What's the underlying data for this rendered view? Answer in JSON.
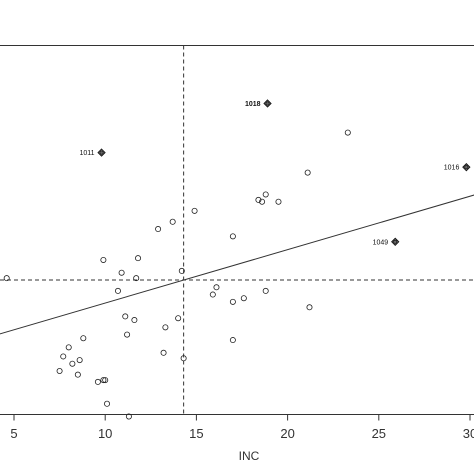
{
  "chart_data": {
    "type": "scatter",
    "xlabel": "INC",
    "ylabel": "",
    "xlim": [
      4.5,
      30
    ],
    "ylim": [
      -8.8,
      5.8
    ],
    "x_ticks": [
      5,
      10,
      15,
      20,
      25,
      30
    ],
    "x_tick_labels": [
      "5",
      "10",
      "15",
      "20",
      "25",
      "30"
    ],
    "mean_x": 14.3,
    "mean_y": 0,
    "top_rule_y": 5.0,
    "regression_line": {
      "intercept": -2.1,
      "slope": 0.1467
    },
    "colors": {
      "points": "#222222",
      "labeled": "#333333",
      "lines": "#333333"
    },
    "points": [
      {
        "x": 4.6,
        "y": 0.05
      },
      {
        "x": 7.5,
        "y": -2.5
      },
      {
        "x": 7.7,
        "y": -2.1
      },
      {
        "x": 8.0,
        "y": -1.85
      },
      {
        "x": 8.2,
        "y": -2.3
      },
      {
        "x": 8.5,
        "y": -2.6
      },
      {
        "x": 8.6,
        "y": -2.2
      },
      {
        "x": 8.8,
        "y": -1.6
      },
      {
        "x": 9.6,
        "y": -2.8
      },
      {
        "x": 9.9,
        "y": -2.75
      },
      {
        "x": 10.0,
        "y": -2.75
      },
      {
        "x": 10.1,
        "y": -3.4
      },
      {
        "x": 9.9,
        "y": 0.55
      },
      {
        "x": 10.7,
        "y": -0.3
      },
      {
        "x": 10.9,
        "y": 0.2
      },
      {
        "x": 11.1,
        "y": -1.0
      },
      {
        "x": 11.2,
        "y": -1.5
      },
      {
        "x": 11.3,
        "y": -3.75
      },
      {
        "x": 11.6,
        "y": -1.1
      },
      {
        "x": 11.7,
        "y": 0.05
      },
      {
        "x": 11.8,
        "y": 0.6
      },
      {
        "x": 12.9,
        "y": 1.4
      },
      {
        "x": 13.2,
        "y": -2.0
      },
      {
        "x": 13.3,
        "y": -1.3
      },
      {
        "x": 13.7,
        "y": 1.6
      },
      {
        "x": 14.0,
        "y": -1.05
      },
      {
        "x": 14.2,
        "y": 0.25
      },
      {
        "x": 14.3,
        "y": -2.15
      },
      {
        "x": 14.9,
        "y": 1.9
      },
      {
        "x": 15.9,
        "y": -0.4
      },
      {
        "x": 16.1,
        "y": -0.2
      },
      {
        "x": 17.0,
        "y": -0.6
      },
      {
        "x": 17.0,
        "y": -1.65
      },
      {
        "x": 17.0,
        "y": 1.2
      },
      {
        "x": 17.6,
        "y": -0.5
      },
      {
        "x": 18.4,
        "y": 2.2
      },
      {
        "x": 18.6,
        "y": 2.15
      },
      {
        "x": 18.8,
        "y": -0.3
      },
      {
        "x": 18.8,
        "y": 2.35
      },
      {
        "x": 19.5,
        "y": 2.15
      },
      {
        "x": 21.2,
        "y": -0.75
      },
      {
        "x": 21.1,
        "y": 2.95
      },
      {
        "x": 23.3,
        "y": 4.05
      }
    ],
    "labeled_points": [
      {
        "id": "1018",
        "x": 18.9,
        "y": 4.85,
        "bold": true
      },
      {
        "id": "1011",
        "x": 9.8,
        "y": 3.5,
        "bold": false
      },
      {
        "id": "1016",
        "x": 29.8,
        "y": 3.1,
        "bold": false
      },
      {
        "id": "1049",
        "x": 25.9,
        "y": 1.05,
        "bold": false
      }
    ]
  }
}
